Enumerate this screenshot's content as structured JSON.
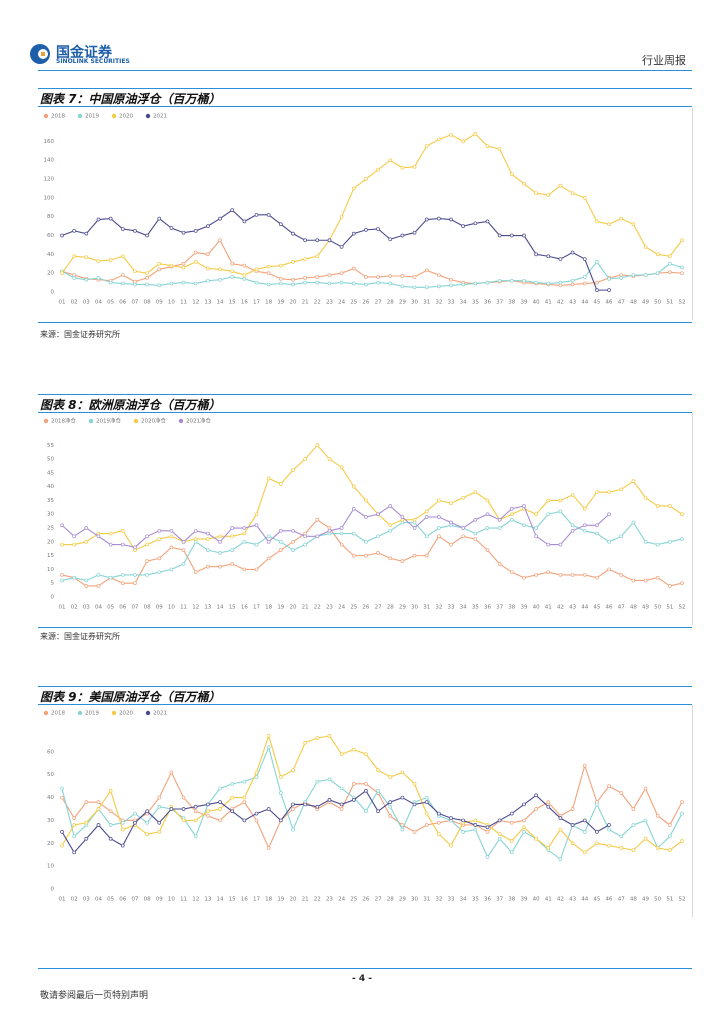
{
  "header": {
    "company_cn": "国金证券",
    "company_en": "SINOLINK SECURITIES",
    "report_type": "行业周报"
  },
  "chart_data": [
    {
      "type": "line",
      "title": "图表 7：中国原油浮仓（百万桶）",
      "source": "来源：国金证券研究所",
      "categories": [
        "01",
        "02",
        "03",
        "04",
        "05",
        "06",
        "07",
        "08",
        "09",
        "10",
        "11",
        "12",
        "13",
        "14",
        "15",
        "16",
        "17",
        "18",
        "19",
        "20",
        "21",
        "22",
        "23",
        "24",
        "25",
        "26",
        "27",
        "28",
        "29",
        "30",
        "31",
        "32",
        "33",
        "34",
        "35",
        "36",
        "37",
        "38",
        "39",
        "40",
        "41",
        "42",
        "43",
        "44",
        "45",
        "46",
        "47",
        "48",
        "49",
        "50",
        "51",
        "52"
      ],
      "ylim": [
        0,
        170
      ],
      "yticks": [
        0,
        20,
        40,
        60,
        80,
        100,
        120,
        140,
        160
      ],
      "series": [
        {
          "name": "2018",
          "color": "#f2a27a",
          "values": [
            22,
            18,
            14,
            13,
            12,
            18,
            11,
            15,
            24,
            27,
            30,
            42,
            40,
            55,
            30,
            28,
            22,
            20,
            14,
            13,
            15,
            16,
            18,
            20,
            25,
            16,
            16,
            17,
            17,
            16,
            23,
            18,
            13,
            10,
            9,
            10,
            11,
            12,
            10,
            9,
            8,
            7,
            8,
            9,
            10,
            15,
            18,
            17,
            18,
            20,
            21,
            20
          ]
        },
        {
          "name": "2019",
          "color": "#86d4d4",
          "values": [
            22,
            15,
            13,
            15,
            10,
            9,
            8,
            8,
            7,
            9,
            10,
            9,
            12,
            13,
            16,
            14,
            10,
            8,
            9,
            8,
            10,
            10,
            9,
            10,
            9,
            8,
            10,
            9,
            6,
            5,
            5,
            6,
            7,
            8,
            9,
            10,
            12,
            12,
            12,
            10,
            9,
            10,
            12,
            16,
            32,
            14,
            15,
            18,
            18,
            20,
            30,
            26
          ]
        },
        {
          "name": "2020",
          "color": "#f5ca45",
          "values": [
            20,
            38,
            37,
            33,
            34,
            38,
            22,
            20,
            30,
            28,
            26,
            32,
            25,
            24,
            22,
            18,
            24,
            27,
            28,
            32,
            35,
            38,
            55,
            80,
            110,
            120,
            130,
            140,
            132,
            133,
            155,
            162,
            167,
            160,
            168,
            155,
            152,
            125,
            115,
            105,
            103,
            113,
            105,
            100,
            75,
            72,
            78,
            72,
            48,
            40,
            38,
            55
          ]
        },
        {
          "name": "2021",
          "color": "#4b4a8e",
          "values": [
            60,
            65,
            62,
            77,
            78,
            67,
            65,
            60,
            78,
            68,
            63,
            65,
            70,
            78,
            87,
            75,
            82,
            82,
            72,
            62,
            55,
            55,
            55,
            48,
            62,
            66,
            67,
            56,
            60,
            63,
            77,
            78,
            77,
            70,
            73,
            75,
            60,
            60,
            60,
            40,
            38,
            35,
            42,
            35,
            2,
            2,
            null,
            null,
            null,
            null,
            null,
            null
          ]
        }
      ]
    },
    {
      "type": "line",
      "title": "图表 8：欧洲原油浮仓（百万桶）",
      "source": "来源：国金证券研究所",
      "categories": [
        "01",
        "02",
        "03",
        "04",
        "05",
        "06",
        "07",
        "08",
        "09",
        "10",
        "11",
        "12",
        "13",
        "14",
        "15",
        "16",
        "17",
        "18",
        "19",
        "20",
        "21",
        "22",
        "23",
        "24",
        "25",
        "26",
        "27",
        "28",
        "29",
        "30",
        "31",
        "32",
        "33",
        "34",
        "35",
        "36",
        "37",
        "38",
        "39",
        "40",
        "41",
        "42",
        "43",
        "44",
        "45",
        "46",
        "47",
        "48",
        "49",
        "50",
        "51",
        "52"
      ],
      "ylim": [
        0,
        58
      ],
      "yticks": [
        0,
        5,
        10,
        15,
        20,
        25,
        30,
        35,
        40,
        45,
        50,
        55
      ],
      "series": [
        {
          "name": "2018净仓",
          "color": "#f2a27a",
          "values": [
            8,
            7,
            4,
            4,
            7,
            5,
            5,
            13,
            14,
            18,
            17,
            9,
            11,
            11,
            12,
            10,
            10,
            14,
            17,
            20,
            23,
            28,
            25,
            19,
            15,
            15,
            16,
            14,
            13,
            15,
            15,
            22,
            19,
            22,
            21,
            17,
            12,
            9,
            7,
            8,
            9,
            8,
            8,
            8,
            7,
            10,
            8,
            6,
            6,
            7,
            4,
            5
          ]
        },
        {
          "name": "2019净仓",
          "color": "#86d4d4",
          "values": [
            6,
            7,
            6,
            8,
            7,
            8,
            8,
            8,
            9,
            10,
            12,
            20,
            17,
            16,
            17,
            20,
            19,
            22,
            20,
            17,
            19,
            22,
            23,
            23,
            23,
            20,
            22,
            24,
            27,
            27,
            22,
            25,
            26,
            25,
            23,
            25,
            25,
            28,
            26,
            25,
            30,
            31,
            26,
            24,
            23,
            20,
            22,
            27,
            20,
            19,
            20,
            21
          ]
        },
        {
          "name": "2020净仓",
          "color": "#f5ca45",
          "values": [
            19,
            19,
            20,
            23,
            23,
            24,
            17,
            19,
            21,
            22,
            20,
            21,
            21,
            22,
            22,
            23,
            30,
            43,
            41,
            46,
            50,
            55,
            50,
            47,
            40,
            35,
            30,
            26,
            28,
            28,
            31,
            35,
            34,
            36,
            38,
            35,
            28,
            30,
            32,
            30,
            35,
            35,
            37,
            32,
            38,
            38,
            39,
            42,
            36,
            33,
            33,
            30
          ]
        },
        {
          "name": "2021净仓",
          "color": "#a88bd2",
          "values": [
            26,
            22,
            25,
            22,
            19,
            19,
            18,
            22,
            24,
            24,
            20,
            24,
            23,
            20,
            25,
            25,
            26,
            20,
            24,
            24,
            22,
            22,
            24,
            25,
            32,
            29,
            30,
            33,
            29,
            25,
            29,
            29,
            27,
            25,
            28,
            30,
            28,
            32,
            33,
            22,
            19,
            19,
            24,
            26,
            26,
            30,
            null,
            null,
            null,
            null,
            null,
            null
          ]
        }
      ]
    },
    {
      "type": "line",
      "title": "图表 9：美国原油浮仓（百万桶）",
      "categories": [
        "01",
        "02",
        "03",
        "04",
        "05",
        "06",
        "07",
        "08",
        "09",
        "10",
        "11",
        "12",
        "13",
        "14",
        "15",
        "16",
        "17",
        "18",
        "19",
        "20",
        "21",
        "22",
        "23",
        "24",
        "25",
        "26",
        "27",
        "28",
        "29",
        "30",
        "31",
        "32",
        "33",
        "34",
        "35",
        "36",
        "37",
        "38",
        "39",
        "40",
        "41",
        "42",
        "43",
        "44",
        "45",
        "46",
        "47",
        "48",
        "49",
        "50",
        "51",
        "52"
      ],
      "ylim": [
        0,
        70
      ],
      "yticks": [
        0,
        10,
        20,
        30,
        40,
        50,
        60
      ],
      "series": [
        {
          "name": "2018",
          "color": "#f2a27a",
          "values": [
            40,
            31,
            38,
            38,
            34,
            30,
            30,
            33,
            40,
            51,
            40,
            34,
            32,
            30,
            35,
            38,
            30,
            18,
            30,
            35,
            38,
            35,
            38,
            35,
            46,
            46,
            42,
            32,
            28,
            25,
            28,
            29,
            30,
            28,
            28,
            25,
            30,
            29,
            30,
            35,
            38,
            32,
            35,
            54,
            38,
            45,
            42,
            35,
            44,
            32,
            28,
            38
          ]
        },
        {
          "name": "2019",
          "color": "#86d4d4",
          "values": [
            44,
            23,
            28,
            35,
            28,
            29,
            33,
            29,
            36,
            35,
            31,
            23,
            37,
            44,
            46,
            47,
            49,
            62,
            42,
            26,
            38,
            47,
            48,
            44,
            40,
            34,
            43,
            36,
            26,
            38,
            40,
            32,
            30,
            25,
            26,
            14,
            22,
            16,
            25,
            22,
            17,
            13,
            28,
            25,
            37,
            26,
            23,
            28,
            30,
            18,
            23,
            33
          ]
        },
        {
          "name": "2020",
          "color": "#f5ca45",
          "values": [
            19,
            28,
            29,
            35,
            43,
            26,
            28,
            24,
            25,
            36,
            30,
            30,
            34,
            35,
            40,
            40,
            51,
            67,
            49,
            52,
            64,
            66,
            67,
            59,
            61,
            59,
            52,
            49,
            51,
            46,
            33,
            24,
            19,
            29,
            30,
            28,
            24,
            21,
            27,
            22,
            18,
            26,
            20,
            16,
            20,
            19,
            18,
            17,
            22,
            18,
            17,
            21
          ]
        },
        {
          "name": "2021",
          "color": "#4b4a8e",
          "values": [
            25,
            16,
            22,
            28,
            22,
            19,
            29,
            34,
            29,
            35,
            35,
            36,
            37,
            38,
            34,
            30,
            33,
            35,
            30,
            37,
            37,
            36,
            39,
            37,
            39,
            43,
            34,
            38,
            40,
            37,
            38,
            33,
            31,
            30,
            28,
            27,
            30,
            33,
            37,
            41,
            36,
            31,
            28,
            30,
            25,
            28,
            null,
            null,
            null,
            null,
            null,
            null
          ]
        }
      ]
    }
  ],
  "footer": {
    "page_number": "- 4 -",
    "disclaimer": "敬请参阅最后一页特别声明"
  }
}
